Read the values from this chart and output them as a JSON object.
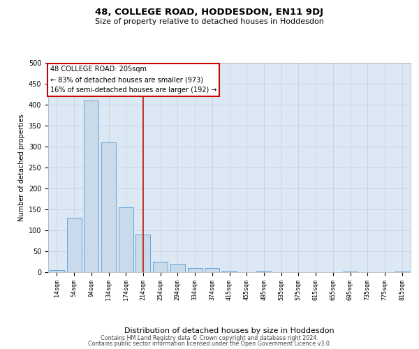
{
  "title": "48, COLLEGE ROAD, HODDESDON, EN11 9DJ",
  "subtitle": "Size of property relative to detached houses in Hoddesdon",
  "xlabel": "Distribution of detached houses by size in Hoddesdon",
  "ylabel": "Number of detached properties",
  "footer_line1": "Contains HM Land Registry data © Crown copyright and database right 2024.",
  "footer_line2": "Contains public sector information licensed under the Open Government Licence v3.0.",
  "annotation_line1": "48 COLLEGE ROAD: 205sqm",
  "annotation_line2": "← 83% of detached houses are smaller (973)",
  "annotation_line3": "16% of semi-detached houses are larger (192) →",
  "bar_color": "#c9daea",
  "bar_edge_color": "#5b9bd5",
  "grid_color": "#c8d4e3",
  "ref_line_color": "#c0392b",
  "categories": [
    "14sqm",
    "54sqm",
    "94sqm",
    "134sqm",
    "174sqm",
    "214sqm",
    "254sqm",
    "294sqm",
    "334sqm",
    "374sqm",
    "415sqm",
    "455sqm",
    "495sqm",
    "535sqm",
    "575sqm",
    "615sqm",
    "655sqm",
    "695sqm",
    "735sqm",
    "775sqm",
    "815sqm"
  ],
  "values": [
    5,
    130,
    410,
    310,
    155,
    90,
    25,
    20,
    10,
    10,
    3,
    0,
    3,
    0,
    0,
    0,
    0,
    2,
    0,
    0,
    1
  ],
  "ylim": [
    0,
    500
  ],
  "yticks": [
    0,
    50,
    100,
    150,
    200,
    250,
    300,
    350,
    400,
    450,
    500
  ],
  "background_color": "#ffffff",
  "plot_bg_color": "#dce9f5"
}
